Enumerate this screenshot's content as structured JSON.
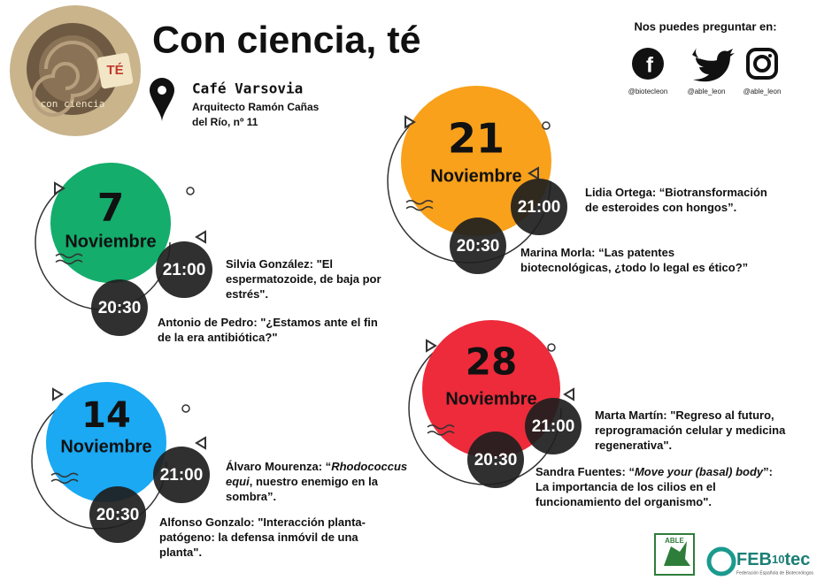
{
  "logo": {
    "small": "con ciencia",
    "badge": "TÉ"
  },
  "header": {
    "title": "Con ciencia, té",
    "venue": {
      "name": "Café Varsovia",
      "address": [
        "Arquitecto Ramón Cañas",
        "del Río, nº 11"
      ]
    }
  },
  "social": {
    "heading": "Nos puedes preguntar en:",
    "accounts": [
      {
        "icon": "f",
        "handle": "@biotecleon"
      },
      {
        "icon": "twitter",
        "handle": "@able_leon"
      },
      {
        "icon": "instagram",
        "handle": "@able_leon"
      }
    ]
  },
  "events": [
    {
      "day": "7",
      "month": "Noviembre",
      "color": "#14ad6c",
      "talks": [
        {
          "time": "21:00",
          "lines": [
            [
              "Silvia González: \"El"
            ],
            [
              "espermatozoide, de baja por"
            ],
            [
              "estrés\"."
            ]
          ]
        },
        {
          "time": "20:30",
          "lines": [
            [
              "Antonio de Pedro: \"¿Estamos ante el fin"
            ],
            [
              "de la era antibiótica?\""
            ]
          ]
        }
      ]
    },
    {
      "day": "14",
      "month": "Noviembre",
      "color": "#1aa9f2",
      "talks": [
        {
          "time": "21:00",
          "lines": [
            [
              "Álvaro Mourenza: “",
              {
                "italic": "Rhodococcus"
              }
            ],
            [
              {
                "italic": "equi"
              },
              ", nuestro enemigo en la"
            ],
            [
              "sombra”."
            ]
          ]
        },
        {
          "time": "20:30",
          "lines": [
            [
              "Alfonso Gonzalo: \"Interacción planta-"
            ],
            [
              "patógeno: la defensa inmóvil de una"
            ],
            [
              "planta\"."
            ]
          ]
        }
      ]
    },
    {
      "day": "21",
      "month": "Noviembre",
      "color": "#f9a11b",
      "talks": [
        {
          "time": "21:00",
          "lines": [
            [
              "Lidia Ortega: “Biotransformación"
            ],
            [
              "de esteroides con hongos”."
            ]
          ]
        },
        {
          "time": "20:30",
          "lines": [
            [
              "Marina Morla: “Las patentes"
            ],
            [
              "biotecnológicas, ¿todo lo legal es ético?”"
            ]
          ]
        }
      ]
    },
    {
      "day": "28",
      "month": "Noviembre",
      "color": "#ed2b3b",
      "talks": [
        {
          "time": "21:00",
          "lines": [
            [
              "Marta Martín: \"Regreso al futuro,"
            ],
            [
              "reprogramación celular y medicina"
            ],
            [
              "regenerativa\"."
            ]
          ]
        },
        {
          "time": "20:30",
          "lines": [
            [
              "Sandra Fuentes: “",
              {
                "italic": "Move your (basal) body"
              },
              "”:"
            ],
            [
              "La importancia de los cilios en el"
            ],
            [
              "funcionamiento del organismo\"."
            ]
          ]
        }
      ]
    }
  ],
  "footer": {
    "able": "ABLE",
    "feb": [
      "FEB",
      "10",
      "tec"
    ],
    "feb_sub": "Federación Española de Biotecnólogos"
  }
}
